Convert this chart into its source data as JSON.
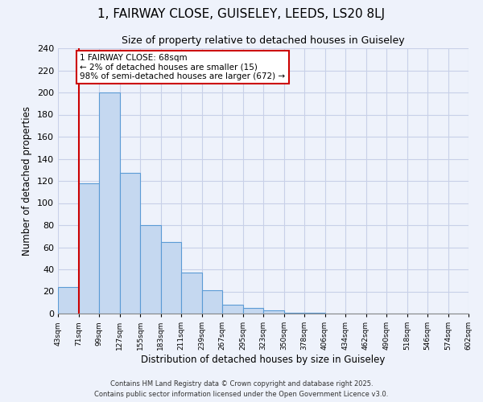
{
  "title": "1, FAIRWAY CLOSE, GUISELEY, LEEDS, LS20 8LJ",
  "subtitle": "Size of property relative to detached houses in Guiseley",
  "xlabel": "Distribution of detached houses by size in Guiseley",
  "ylabel": "Number of detached properties",
  "bar_values": [
    24,
    118,
    200,
    127,
    80,
    65,
    37,
    21,
    8,
    5,
    3,
    1,
    1,
    0,
    0,
    0,
    0,
    0,
    0,
    0
  ],
  "bin_labels": [
    "43sqm",
    "71sqm",
    "99sqm",
    "127sqm",
    "155sqm",
    "183sqm",
    "211sqm",
    "239sqm",
    "267sqm",
    "295sqm",
    "323sqm",
    "350sqm",
    "378sqm",
    "406sqm",
    "434sqm",
    "462sqm",
    "490sqm",
    "518sqm",
    "546sqm",
    "574sqm",
    "602sqm"
  ],
  "bar_color": "#c5d8f0",
  "bar_edge_color": "#5b9bd5",
  "vline_x": 1,
  "vline_color": "#cc0000",
  "annotation_title": "1 FAIRWAY CLOSE: 68sqm",
  "annotation_line1": "← 2% of detached houses are smaller (15)",
  "annotation_line2": "98% of semi-detached houses are larger (672) →",
  "annotation_box_color": "#ffffff",
  "annotation_box_edge": "#cc0000",
  "ylim": [
    0,
    240
  ],
  "yticks": [
    0,
    20,
    40,
    60,
    80,
    100,
    120,
    140,
    160,
    180,
    200,
    220,
    240
  ],
  "footer1": "Contains HM Land Registry data © Crown copyright and database right 2025.",
  "footer2": "Contains public sector information licensed under the Open Government Licence v3.0.",
  "background_color": "#eef2fb",
  "grid_color": "#c8d0e8",
  "n_bins": 20
}
